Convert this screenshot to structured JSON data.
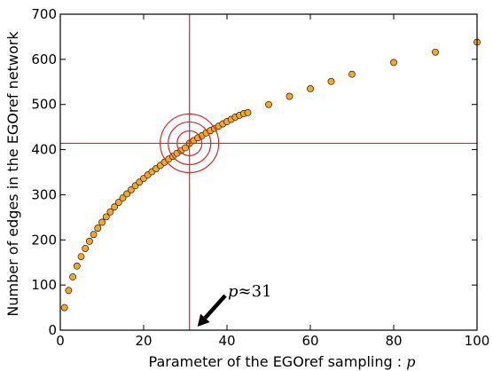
{
  "chart_data": {
    "type": "scatter",
    "xlabel_text": "Parameter of the EGOref sampling : ",
    "xlabel_var": "p",
    "ylabel": "Number of edges in the EGOref network",
    "xlim": [
      0,
      100
    ],
    "ylim": [
      0,
      700
    ],
    "xticks": [
      0,
      20,
      40,
      60,
      80,
      100
    ],
    "yticks": [
      0,
      100,
      200,
      300,
      400,
      500,
      600,
      700
    ],
    "grid": false,
    "colors": {
      "marker": "#f5a623",
      "marker_edge": "#000000",
      "crosshair": "#d62728",
      "arrow": "#000000"
    },
    "series": [
      {
        "x": [
          1,
          2,
          3,
          4,
          5,
          6,
          7,
          8,
          9,
          10,
          11,
          12,
          13,
          14,
          15,
          16,
          17,
          18,
          19,
          20,
          21,
          22,
          23,
          24,
          25,
          26,
          27,
          28,
          29,
          30,
          31,
          32,
          33,
          34,
          35,
          36,
          37,
          38,
          39,
          40,
          41,
          42,
          43,
          44,
          45,
          50,
          55,
          60,
          65,
          70,
          80,
          90,
          100
        ],
        "y": [
          50,
          88,
          118,
          142,
          163,
          181,
          197,
          212,
          226,
          239,
          251,
          262,
          273,
          283,
          293,
          302,
          311,
          320,
          328,
          336,
          344,
          351,
          358,
          365,
          372,
          379,
          385,
          392,
          398,
          404,
          414,
          420,
          426,
          431,
          437,
          442,
          447,
          452,
          457,
          462,
          467,
          472,
          476,
          480,
          482,
          500,
          518,
          535,
          551,
          567,
          593,
          616,
          638
        ]
      }
    ],
    "crosshair": {
      "x": 31,
      "y": 414
    },
    "annotation": {
      "var": "p",
      "rest": "≈31",
      "target_x": 31,
      "target_y": 0
    }
  }
}
